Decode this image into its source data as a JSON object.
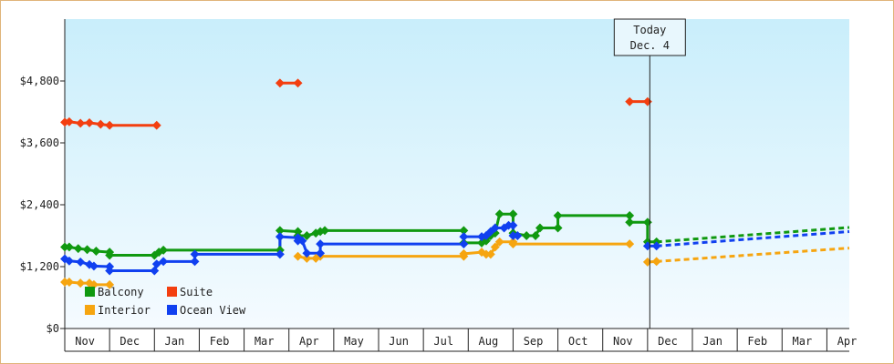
{
  "chart_data": {
    "type": "line",
    "title": "",
    "xlabel": "",
    "ylabel": "",
    "x_unit": "month index (0 = Nov)",
    "xlim": [
      0,
      17.5
    ],
    "ylim": [
      0,
      6000
    ],
    "yticks": [
      0,
      1200,
      2400,
      3600,
      4800
    ],
    "ytick_labels": [
      "$0",
      "$1,200",
      "$2,400",
      "$3,600",
      "$4,800"
    ],
    "months": [
      "Nov",
      "Dec",
      "Jan",
      "Feb",
      "Mar",
      "Apr",
      "May",
      "Jun",
      "Jul",
      "Aug",
      "Sep",
      "Oct",
      "Nov",
      "Dec",
      "Jan",
      "Feb",
      "Mar",
      "Apr"
    ],
    "grid": false,
    "legend_position": "bottom-left",
    "today_marker": {
      "x": 13.05,
      "line1": "Today",
      "line2": "Dec. 4"
    },
    "colors": {
      "Balcony": "#109910",
      "Suite": "#f33f10",
      "Interior": "#f6a510",
      "Ocean View": "#1040f0"
    },
    "series": [
      {
        "name": "Balcony",
        "color": "#109910",
        "segments": [
          [
            [
              0.0,
              1580
            ],
            [
              0.1,
              1580
            ],
            [
              0.3,
              1550
            ],
            [
              0.5,
              1530
            ],
            [
              0.7,
              1500
            ],
            [
              1.0,
              1480
            ],
            [
              1.0,
              1420
            ],
            [
              2.0,
              1420
            ],
            [
              2.1,
              1480
            ],
            [
              2.2,
              1520
            ],
            [
              4.8,
              1520
            ],
            [
              4.8,
              1900
            ],
            [
              5.2,
              1880
            ],
            [
              5.2,
              1800
            ],
            [
              5.4,
              1800
            ],
            [
              5.6,
              1850
            ],
            [
              5.7,
              1880
            ],
            [
              5.8,
              1900
            ],
            [
              8.9,
              1900
            ],
            [
              8.9,
              1660
            ],
            [
              9.3,
              1660
            ],
            [
              9.4,
              1700
            ],
            [
              9.5,
              1800
            ],
            [
              9.6,
              1850
            ],
            [
              9.7,
              2220
            ],
            [
              10.0,
              2220
            ],
            [
              10.0,
              1850
            ],
            [
              10.3,
              1800
            ],
            [
              10.5,
              1800
            ],
            [
              10.6,
              1950
            ],
            [
              11.0,
              1950
            ],
            [
              11.0,
              2190
            ],
            [
              12.6,
              2190
            ],
            [
              12.6,
              2060
            ],
            [
              13.0,
              2060
            ],
            [
              13.0,
              1680
            ],
            [
              13.2,
              1680
            ]
          ]
        ],
        "projection": [
          [
            13.2,
            1680
          ],
          [
            17.5,
            1960
          ]
        ]
      },
      {
        "name": "Suite",
        "color": "#f33f10",
        "segments": [
          [
            [
              0.0,
              4000
            ],
            [
              0.1,
              4010
            ],
            [
              0.35,
              3980
            ],
            [
              0.55,
              3990
            ],
            [
              0.8,
              3960
            ],
            [
              1.0,
              3940
            ],
            [
              2.05,
              3940
            ]
          ],
          [
            [
              4.8,
              4760
            ],
            [
              5.2,
              4760
            ]
          ],
          [
            [
              12.6,
              4400
            ],
            [
              13.0,
              4400
            ]
          ]
        ]
      },
      {
        "name": "Interior",
        "color": "#f6a510",
        "segments": [
          [
            [
              0.0,
              900
            ],
            [
              0.1,
              900
            ],
            [
              0.35,
              880
            ],
            [
              0.55,
              880
            ],
            [
              0.65,
              850
            ],
            [
              1.0,
              850
            ]
          ],
          [
            [
              5.2,
              1400
            ],
            [
              5.4,
              1360
            ],
            [
              5.6,
              1360
            ],
            [
              5.7,
              1400
            ],
            [
              8.9,
              1400
            ],
            [
              8.9,
              1450
            ],
            [
              9.3,
              1480
            ],
            [
              9.4,
              1440
            ],
            [
              9.5,
              1440
            ],
            [
              9.6,
              1580
            ],
            [
              9.7,
              1680
            ],
            [
              10.0,
              1680
            ],
            [
              10.0,
              1640
            ],
            [
              12.6,
              1640
            ]
          ],
          [
            [
              13.0,
              1290
            ],
            [
              13.2,
              1300
            ]
          ]
        ],
        "projection": [
          [
            13.2,
            1300
          ],
          [
            17.5,
            1560
          ]
        ]
      },
      {
        "name": "Ocean View",
        "color": "#1040f0",
        "segments": [
          [
            [
              0.0,
              1350
            ],
            [
              0.1,
              1310
            ],
            [
              0.35,
              1290
            ],
            [
              0.55,
              1240
            ],
            [
              0.65,
              1210
            ],
            [
              1.0,
              1200
            ],
            [
              1.0,
              1120
            ],
            [
              2.0,
              1120
            ],
            [
              2.05,
              1250
            ],
            [
              2.2,
              1300
            ],
            [
              2.9,
              1300
            ],
            [
              2.9,
              1440
            ],
            [
              4.8,
              1440
            ],
            [
              4.8,
              1780
            ],
            [
              5.2,
              1760
            ],
            [
              5.2,
              1700
            ],
            [
              5.3,
              1700
            ],
            [
              5.4,
              1460
            ],
            [
              5.7,
              1460
            ],
            [
              5.7,
              1640
            ],
            [
              8.9,
              1640
            ],
            [
              8.9,
              1780
            ],
            [
              9.3,
              1780
            ],
            [
              9.4,
              1800
            ],
            [
              9.5,
              1880
            ],
            [
              9.6,
              1950
            ],
            [
              9.8,
              1950
            ],
            [
              9.9,
              2000
            ],
            [
              10.0,
              2000
            ],
            [
              10.0,
              1800
            ],
            [
              10.1,
              1800
            ]
          ],
          [
            [
              13.0,
              1600
            ],
            [
              13.2,
              1600
            ]
          ]
        ],
        "projection": [
          [
            13.2,
            1600
          ],
          [
            17.5,
            1880
          ]
        ]
      }
    ]
  }
}
